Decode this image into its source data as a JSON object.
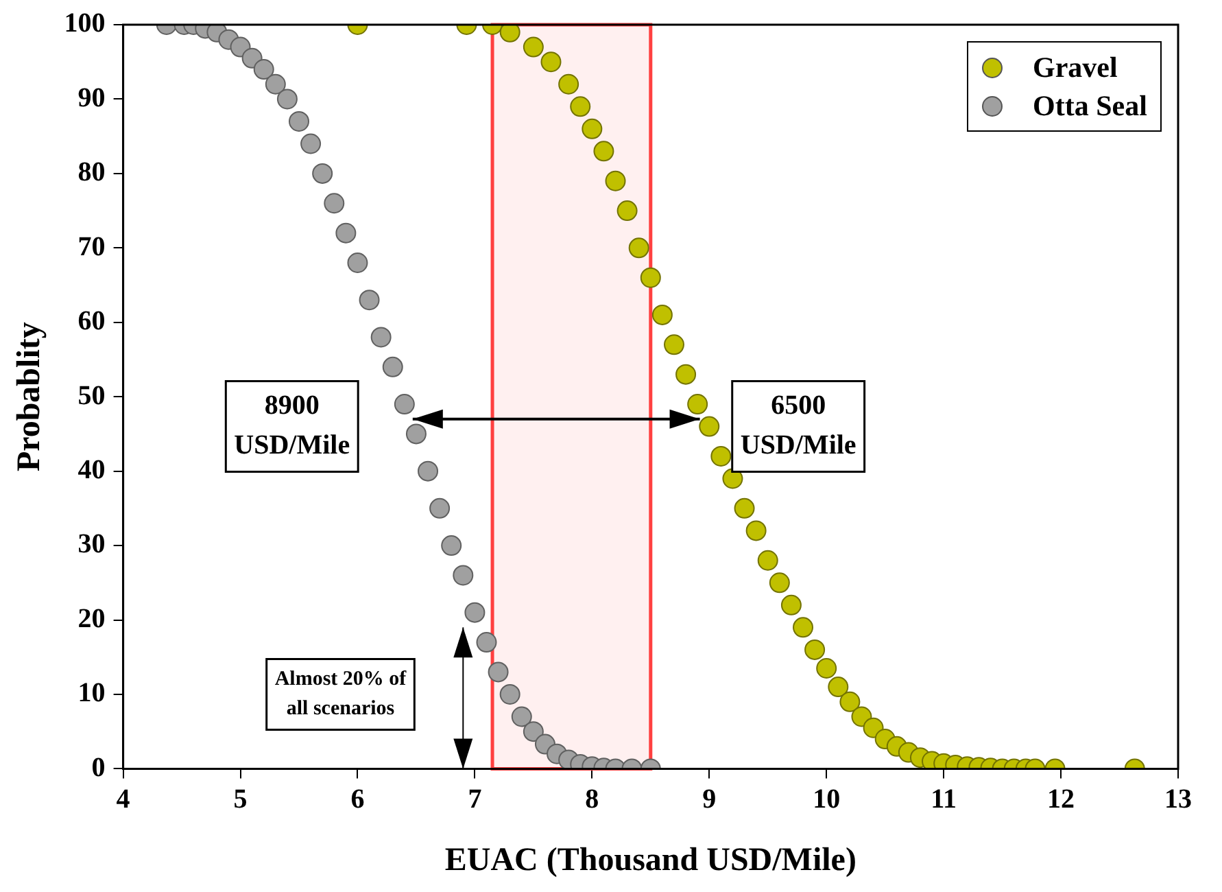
{
  "chart_data": {
    "type": "scatter",
    "xlabel": "EUAC (Thousand USD/Mile)",
    "ylabel": "Probablity",
    "series": [
      {
        "name": "Gravel",
        "color": "#c0c000",
        "x": [
          6.0,
          6.93,
          7.15,
          7.3,
          7.5,
          7.65,
          7.8,
          7.9,
          8.0,
          8.1,
          8.2,
          8.3,
          8.4,
          8.5,
          8.6,
          8.7,
          8.8,
          8.9,
          9.0,
          9.1,
          9.2,
          9.3,
          9.4,
          9.5,
          9.6,
          9.7,
          9.8,
          9.9,
          10.0,
          10.1,
          10.2,
          10.3,
          10.4,
          10.5,
          10.6,
          10.7,
          10.8,
          10.9,
          11.0,
          11.1,
          11.2,
          11.3,
          11.4,
          11.5,
          11.6,
          11.7,
          11.78,
          11.95,
          12.63
        ],
        "values": [
          100,
          100,
          100,
          99,
          97,
          95,
          92,
          89,
          86,
          83,
          79,
          75,
          70,
          66,
          61,
          57,
          53,
          49,
          46,
          42,
          39,
          35,
          32,
          28,
          25,
          22,
          19,
          16,
          13.5,
          11,
          9,
          7,
          5.5,
          4,
          3,
          2.2,
          1.5,
          1,
          0.7,
          0.5,
          0.3,
          0.2,
          0.1,
          0,
          0,
          0,
          0,
          0,
          0
        ]
      },
      {
        "name": "Otta Seal",
        "color": "#a0a0a0",
        "x": [
          4.37,
          4.52,
          4.6,
          4.7,
          4.8,
          4.9,
          5.0,
          5.1,
          5.2,
          5.3,
          5.4,
          5.5,
          5.6,
          5.7,
          5.8,
          5.9,
          6.0,
          6.1,
          6.2,
          6.3,
          6.4,
          6.5,
          6.6,
          6.7,
          6.8,
          6.9,
          7.0,
          7.1,
          7.2,
          7.3,
          7.4,
          7.5,
          7.6,
          7.7,
          7.8,
          7.9,
          8.0,
          8.1,
          8.2,
          8.34,
          8.5
        ],
        "values": [
          100,
          100,
          100,
          99.5,
          99,
          98,
          97,
          95.5,
          94,
          92,
          90,
          87,
          84,
          80,
          76,
          72,
          68,
          63,
          58,
          54,
          49,
          45,
          40,
          35,
          30,
          26,
          21,
          17,
          13,
          10,
          7,
          5,
          3.3,
          2,
          1.2,
          0.6,
          0.3,
          0.1,
          0,
          0,
          0
        ]
      }
    ],
    "xlim": [
      4,
      13
    ],
    "xticks": [
      4,
      5,
      6,
      7,
      8,
      9,
      10,
      11,
      12,
      13
    ],
    "ylim": [
      0,
      100
    ],
    "yticks": [
      0,
      10,
      20,
      30,
      40,
      50,
      60,
      70,
      80,
      90,
      100
    ],
    "grid": false,
    "legend": "top right",
    "marker": "circle",
    "bands": [
      {
        "axis": "x",
        "from": 7.15,
        "to": 8.5,
        "color": "#ff4040"
      }
    ],
    "annotations": [
      "8900\nUSD/Mile",
      "6500\nUSD/Mile",
      "Almost 20% of\nall scenarios"
    ]
  }
}
